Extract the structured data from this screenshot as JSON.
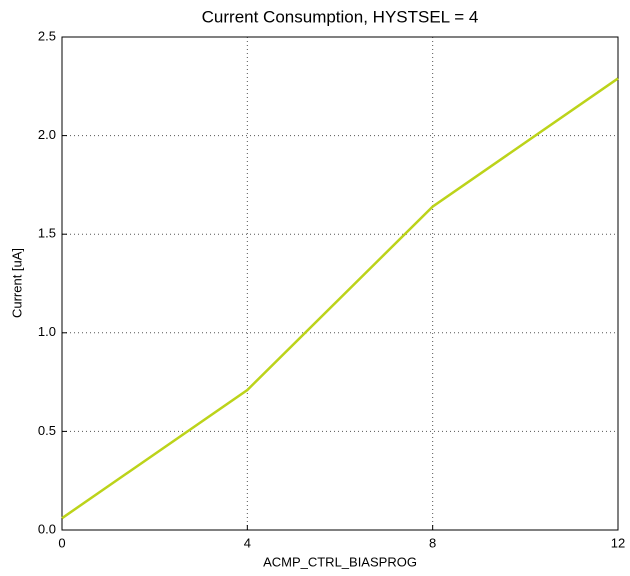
{
  "chart_data": {
    "type": "line",
    "title": "Current Consumption, HYSTSEL = 4",
    "xlabel": "ACMP_CTRL_BIASPROG",
    "ylabel": "Current [uA]",
    "x": [
      0,
      4,
      8,
      12
    ],
    "series": [
      {
        "name": "Current",
        "color": "#bcd31a",
        "values": [
          0.06,
          0.71,
          1.64,
          2.29
        ]
      }
    ],
    "xlim": [
      0,
      12
    ],
    "xticks": [
      0,
      4,
      8,
      12
    ],
    "ylim": [
      0,
      2.5
    ],
    "yticks": [
      {
        "value": 0,
        "label": "0.0"
      },
      0.5,
      {
        "value": 1,
        "label": "1.0"
      },
      1.5,
      {
        "value": 2,
        "label": "2.0"
      },
      2.5
    ],
    "grid": true
  }
}
